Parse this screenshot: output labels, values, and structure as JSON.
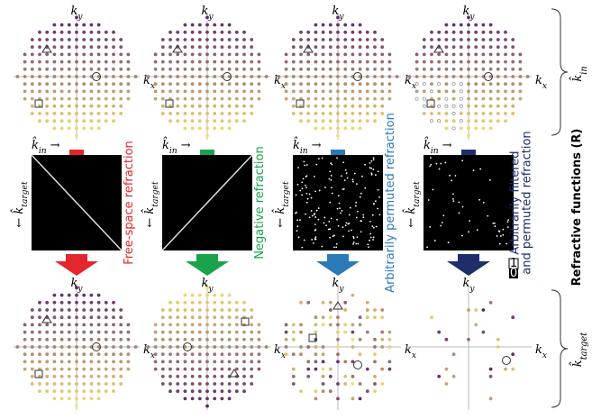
{
  "top_row": [
    {
      "y_label": {
        "base": "k",
        "sub": "y"
      },
      "x_label": {
        "base": "k",
        "sub": "x"
      }
    },
    {
      "y_label": {
        "base": "k",
        "sub": "y"
      },
      "x_label": {
        "base": "k",
        "sub": "x"
      }
    },
    {
      "y_label": {
        "base": "k",
        "sub": "y"
      },
      "x_label": {
        "base": "k",
        "sub": "x"
      }
    },
    {
      "y_label": {
        "base": "k",
        "sub": "y"
      },
      "x_label": {
        "base": "k",
        "sub": "x"
      }
    }
  ],
  "middle_row": [
    {
      "input_label": {
        "base": "k̂",
        "sub": "in",
        "arrow": "→"
      },
      "output_label": {
        "arrow": "←",
        "base": "k̂",
        "sub": "target"
      },
      "caption": [
        "Free-space refraction"
      ],
      "color": "#e3262b"
    },
    {
      "input_label": {
        "base": "k̂",
        "sub": "in",
        "arrow": "→"
      },
      "output_label": {
        "arrow": "←",
        "base": "k̂",
        "sub": "target"
      },
      "caption": [
        "Negative refraction"
      ],
      "color": "#1aa34a"
    },
    {
      "input_label": {
        "base": "k̂",
        "sub": "in",
        "arrow": "→"
      },
      "output_label": {
        "arrow": "←",
        "base": "k̂",
        "sub": "target"
      },
      "caption": [
        "Arbitrarily permuted refraction"
      ],
      "color": "#2a7ab8"
    },
    {
      "input_label": {
        "base": "k̂",
        "sub": "in",
        "arrow": "→"
      },
      "output_label": {
        "arrow": "←",
        "base": "k̂",
        "sub": "target"
      },
      "caption": [
        "Arbitrarily filtered",
        "and permuted refraction"
      ],
      "color": "#1d2e6b"
    }
  ],
  "bottom_row": [
    {
      "y_label": {
        "base": "k",
        "sub": "y"
      },
      "x_label": {
        "base": "k",
        "sub": "x"
      }
    },
    {
      "y_label": {
        "base": "k",
        "sub": "y"
      },
      "x_label": {
        "base": "k",
        "sub": "x"
      }
    },
    {
      "y_label": {
        "base": "k",
        "sub": "y"
      },
      "x_label": {
        "base": "k",
        "sub": "x"
      }
    },
    {
      "y_label": {
        "base": "k",
        "sub": "y"
      },
      "x_label": {
        "base": "k",
        "sub": "x"
      }
    }
  ],
  "side_labels": {
    "top": {
      "base": "k̂",
      "sub": "in"
    },
    "middle": "Refractive functions (R)",
    "bottom": {
      "base": "k̂",
      "sub": "target"
    }
  },
  "legend": {
    "one": "1",
    "zero": "0"
  }
}
